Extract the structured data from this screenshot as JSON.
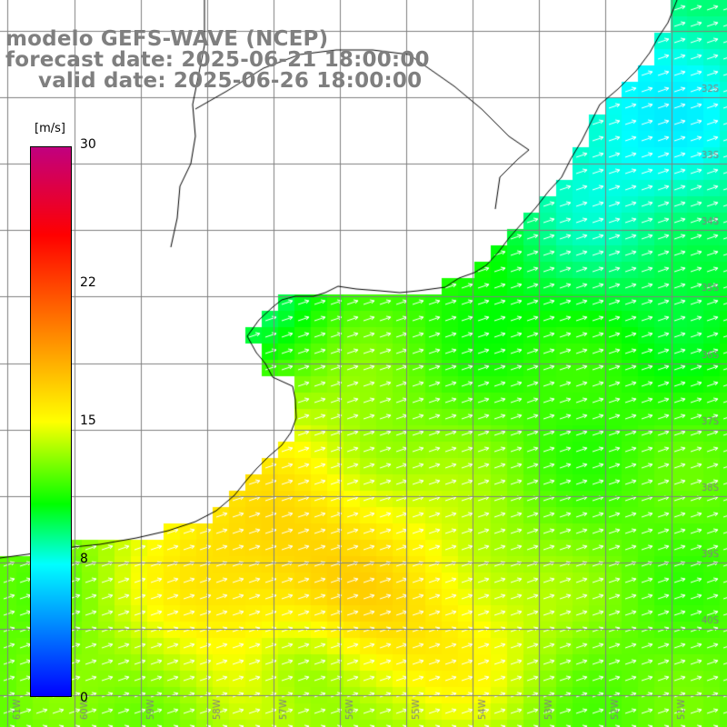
{
  "title": {
    "line1": "modelo GEFS-WAVE (NCEP)",
    "line2": "forecast date: 2025-06-21 18:00:00",
    "line3": "valid date: 2025-06-26 18:00:00"
  },
  "colorbar": {
    "unit": "[m/s]",
    "min": 0,
    "max": 30,
    "ticks": [
      "30",
      "22",
      "15",
      "8",
      "0"
    ],
    "tick_values": [
      30,
      22,
      15,
      8,
      0
    ],
    "colors": {
      "v0": "#0000ff",
      "v4": "#007fff",
      "v8": "#00ffff",
      "v11": "#00ff00",
      "v15": "#ffff00",
      "v20": "#ff7f00",
      "v25": "#ff0000",
      "v30": "#c1007f"
    }
  },
  "map": {
    "lon_labels": [
      "61W",
      "60W",
      "59W",
      "58W",
      "57W",
      "56W",
      "55W",
      "54W",
      "53W",
      "52W",
      "51W"
    ],
    "lat_labels": [
      "32S",
      "33S",
      "34S",
      "35S",
      "36S",
      "37S",
      "38S",
      "39S",
      "40S"
    ],
    "wind_direction": "towards northeast",
    "ocean_color": "#00ff33",
    "land_color": "#ffffff",
    "coastline_color": "#000000",
    "graticule_color": "#808080",
    "vector_color": "#ffffff"
  }
}
